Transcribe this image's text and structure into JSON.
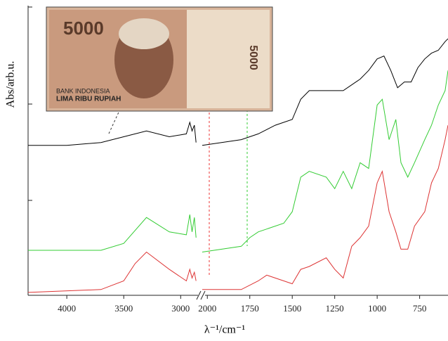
{
  "chart_data": {
    "type": "line",
    "x_label": "λ⁻¹/cm⁻¹",
    "y_label": "Abs/arb.u.",
    "x_segments": [
      {
        "xlim": [
          4340,
          2860
        ],
        "xticks": [
          4000,
          3500,
          3000
        ]
      },
      {
        "xlim": [
          2030,
          583
        ],
        "xticks": [
          2000,
          1750,
          1500,
          1250,
          1000,
          750
        ]
      }
    ],
    "ylim": [
      0,
      100
    ],
    "series": [
      {
        "color": "#000000",
        "x": [
          4340,
          4000,
          3700,
          3500,
          3300,
          3100,
          2950,
          2920,
          2900,
          2880,
          2865,
          2030,
          1800,
          1700,
          1600,
          1500,
          1450,
          1400,
          1300,
          1200,
          1100,
          1050,
          1000,
          960,
          920,
          880,
          840,
          800,
          760,
          720,
          680,
          640,
          600,
          583
        ],
        "values": [
          52,
          52,
          53,
          55,
          57,
          55,
          56,
          60,
          57,
          59,
          53,
          52,
          54,
          56,
          59,
          61,
          68,
          71,
          71,
          71,
          75,
          78,
          82,
          83,
          78,
          72,
          74,
          74,
          79,
          82,
          84,
          85,
          88,
          89
        ]
      },
      {
        "color": "#33cc33",
        "x": [
          4340,
          3700,
          3500,
          3300,
          3100,
          2950,
          2920,
          2900,
          2880,
          2865,
          2030,
          1800,
          1750,
          1700,
          1550,
          1500,
          1450,
          1400,
          1300,
          1250,
          1200,
          1150,
          1100,
          1050,
          1000,
          970,
          930,
          890,
          860,
          820,
          780,
          720,
          680,
          640,
          600,
          583
        ],
        "values": [
          15.6,
          15.6,
          18,
          27,
          22,
          21,
          28,
          22,
          27,
          20,
          15,
          17,
          20,
          22,
          25,
          29,
          41,
          43,
          41,
          37,
          43,
          37,
          46,
          44,
          66,
          68,
          54,
          61,
          46,
          41,
          46,
          54,
          59,
          66,
          71,
          78
        ]
      },
      {
        "color": "#dd3333",
        "x": [
          4340,
          3700,
          3500,
          3400,
          3300,
          3100,
          2950,
          2920,
          2900,
          2880,
          2865,
          2030,
          1800,
          1700,
          1650,
          1550,
          1500,
          1450,
          1400,
          1300,
          1250,
          1200,
          1150,
          1100,
          1050,
          1000,
          970,
          930,
          890,
          860,
          820,
          780,
          720,
          680,
          640,
          600,
          583
        ],
        "values": [
          1,
          2,
          5,
          11,
          15,
          9,
          5,
          9,
          6,
          8,
          5,
          2,
          2,
          5,
          7,
          5,
          4,
          9,
          10,
          13,
          9,
          6,
          17,
          20,
          24,
          39,
          43,
          29,
          22,
          16,
          16,
          24,
          29,
          39,
          44,
          54,
          59
        ]
      }
    ],
    "inset": {
      "denomination": "5000",
      "bank": "BANK INDONESIA",
      "amount": "LIMA RIBU RUPIAH"
    }
  }
}
